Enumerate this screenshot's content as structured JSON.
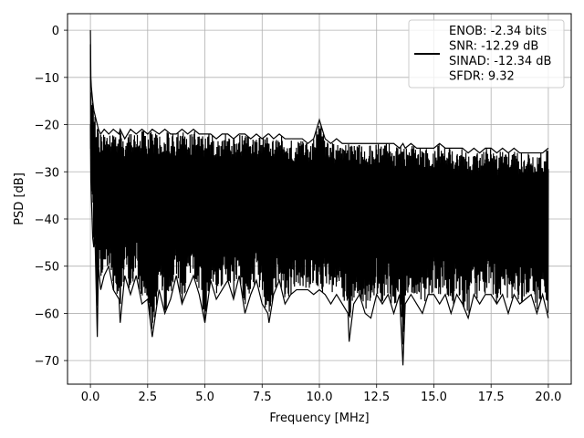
{
  "chart_data": {
    "type": "line",
    "title": "",
    "xlabel": "Frequency [MHz]",
    "ylabel": "PSD [dB]",
    "xlim": [
      -1.0,
      21.0
    ],
    "ylim": [
      -75.0,
      3.5
    ],
    "xticks": [
      0.0,
      2.5,
      5.0,
      7.5,
      10.0,
      12.5,
      15.0,
      17.5,
      20.0
    ],
    "xtick_labels": [
      "0.0",
      "2.5",
      "5.0",
      "7.5",
      "10.0",
      "12.5",
      "15.0",
      "17.5",
      "20.0"
    ],
    "yticks": [
      0,
      -10,
      -20,
      -30,
      -40,
      -50,
      -60,
      -70
    ],
    "ytick_labels": [
      "0",
      "−10",
      "−20",
      "−30",
      "−40",
      "−50",
      "−60",
      "−70"
    ],
    "grid": true,
    "legend_position": "top-right",
    "legend_lines": [
      "ENOB: -2.34 bits",
      "SNR: -12.29 dB",
      "SINAD: -12.34 dB",
      "SFDR: 9.32"
    ],
    "series_color": "#000000",
    "series": [
      {
        "x": [
          0.0,
          0.02,
          0.04,
          0.06,
          0.1,
          0.15,
          0.2,
          0.3,
          0.35,
          0.45,
          0.6,
          0.8,
          1.0,
          1.25,
          1.3,
          1.5,
          1.75,
          2.0,
          2.25,
          2.5,
          2.7,
          3.0,
          3.25,
          3.5,
          3.75,
          4.0,
          4.25,
          4.5,
          4.75,
          5.0,
          5.25,
          5.5,
          5.75,
          6.0,
          6.25,
          6.5,
          6.75,
          7.0,
          7.25,
          7.5,
          7.75,
          7.8,
          8.0,
          8.25,
          8.5,
          8.75,
          9.0,
          9.25,
          9.5,
          9.75,
          10.0,
          10.25,
          10.5,
          10.75,
          11.0,
          11.25,
          11.3,
          11.5,
          11.75,
          12.0,
          12.25,
          12.5,
          12.75,
          13.0,
          13.25,
          13.5,
          13.65,
          13.75,
          14.0,
          14.25,
          14.5,
          14.75,
          15.0,
          15.25,
          15.5,
          15.75,
          16.0,
          16.25,
          16.5,
          16.75,
          17.0,
          17.25,
          17.5,
          17.75,
          18.0,
          18.25,
          18.5,
          18.75,
          19.0,
          19.25,
          19.5,
          19.75,
          20.0
        ],
        "upper": [
          0,
          -10,
          -12,
          -13,
          -15,
          -17,
          -18,
          -20,
          -21,
          -22,
          -21,
          -22,
          -21,
          -22,
          -21,
          -23,
          -21,
          -22,
          -21,
          -22,
          -21,
          -22,
          -21,
          -22,
          -22,
          -21,
          -22,
          -21,
          -22,
          -22,
          -22,
          -23,
          -22,
          -22,
          -23,
          -22,
          -22,
          -23,
          -22,
          -23,
          -22,
          -22,
          -23,
          -22,
          -23,
          -23,
          -23,
          -23,
          -24,
          -23,
          -19,
          -23,
          -24,
          -23,
          -24,
          -24,
          -24,
          -24,
          -24,
          -24,
          -24,
          -24,
          -24,
          -24,
          -24,
          -25,
          -24,
          -25,
          -24,
          -25,
          -25,
          -25,
          -25,
          -24,
          -25,
          -25,
          -25,
          -25,
          -26,
          -25,
          -26,
          -25,
          -25,
          -26,
          -25,
          -26,
          -25,
          -26,
          -26,
          -26,
          -26,
          -26,
          -25
        ],
        "lower": [
          -20,
          -32,
          -35,
          -38,
          -44,
          -46,
          -44,
          -65,
          -50,
          -55,
          -52,
          -50,
          -55,
          -57,
          -62,
          -52,
          -56,
          -52,
          -58,
          -57,
          -65,
          -55,
          -60,
          -57,
          -52,
          -58,
          -55,
          -52,
          -56,
          -62,
          -53,
          -57,
          -55,
          -53,
          -57,
          -52,
          -60,
          -56,
          -53,
          -58,
          -60,
          -62,
          -56,
          -53,
          -58,
          -56,
          -55,
          -55,
          -55,
          -56,
          -55,
          -56,
          -58,
          -56,
          -58,
          -60,
          -66,
          -58,
          -56,
          -60,
          -61,
          -56,
          -58,
          -56,
          -60,
          -56,
          -71,
          -58,
          -56,
          -58,
          -60,
          -56,
          -56,
          -58,
          -56,
          -60,
          -56,
          -58,
          -61,
          -56,
          -58,
          -56,
          -56,
          -58,
          -56,
          -60,
          -56,
          -58,
          -57,
          -56,
          -60,
          -56,
          -61
        ]
      }
    ]
  }
}
